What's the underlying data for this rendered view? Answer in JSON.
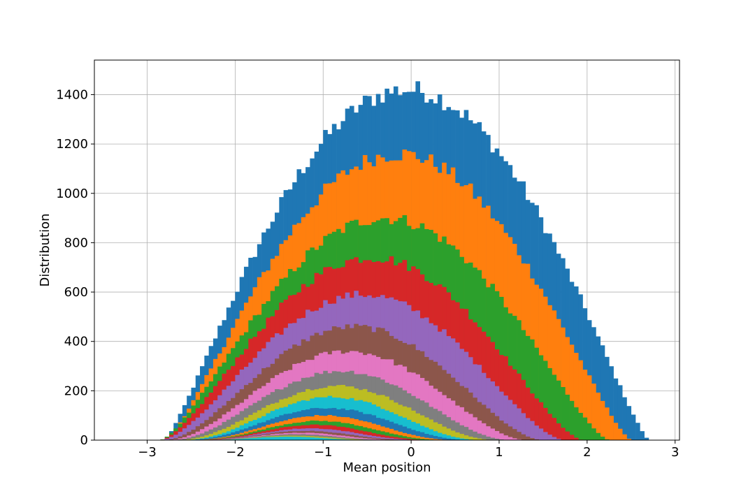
{
  "chart_data": {
    "type": "bar",
    "subtype": "overlaid histogram",
    "xlabel": "Mean position",
    "ylabel": "Distribution",
    "xlim": [
      -3.6,
      3.05
    ],
    "ylim": [
      0,
      1540
    ],
    "xticks": [
      -3,
      -2,
      -1,
      0,
      1,
      2,
      3
    ],
    "xtick_labels": [
      "−3",
      "−2",
      "−1",
      "0",
      "1",
      "2",
      "3"
    ],
    "yticks": [
      0,
      200,
      400,
      600,
      800,
      1000,
      1200,
      1400
    ],
    "ytick_labels": [
      "0",
      "200",
      "400",
      "600",
      "800",
      "1000",
      "1200",
      "1400"
    ],
    "grid": true,
    "bin_width": 0.05,
    "series": [
      {
        "color": "#1f77b4",
        "amplitude": 1420,
        "center": -0.05,
        "halfwidth": 2.75,
        "exponent": 1.25
      },
      {
        "color": "#ff7f0e",
        "amplitude": 1160,
        "center": -0.15,
        "halfwidth": 2.65,
        "exponent": 1.35
      },
      {
        "color": "#2ca02c",
        "amplitude": 900,
        "center": -0.3,
        "halfwidth": 2.55,
        "exponent": 1.45
      },
      {
        "color": "#d62728",
        "amplitude": 740,
        "center": -0.45,
        "halfwidth": 2.4,
        "exponent": 1.55
      },
      {
        "color": "#9467bd",
        "amplitude": 590,
        "center": -0.55,
        "halfwidth": 2.3,
        "exponent": 1.7
      },
      {
        "color": "#8c564b",
        "amplitude": 460,
        "center": -0.65,
        "halfwidth": 2.15,
        "exponent": 1.85
      },
      {
        "color": "#e377c2",
        "amplitude": 360,
        "center": -0.72,
        "halfwidth": 2.05,
        "exponent": 2.0
      },
      {
        "color": "#7f7f7f",
        "amplitude": 280,
        "center": -0.8,
        "halfwidth": 1.95,
        "exponent": 2.2
      },
      {
        "color": "#bcbd22",
        "amplitude": 220,
        "center": -0.85,
        "halfwidth": 1.85,
        "exponent": 2.4
      },
      {
        "color": "#17becf",
        "amplitude": 175,
        "center": -0.9,
        "halfwidth": 1.75,
        "exponent": 2.6
      },
      {
        "color": "#1f77b4",
        "amplitude": 130,
        "center": -0.95,
        "halfwidth": 1.7,
        "exponent": 2.8
      },
      {
        "color": "#ff7f0e",
        "amplitude": 100,
        "center": -1.0,
        "halfwidth": 1.6,
        "exponent": 3.0
      },
      {
        "color": "#2ca02c",
        "amplitude": 78,
        "center": -1.05,
        "halfwidth": 1.55,
        "exponent": 3.2
      },
      {
        "color": "#d62728",
        "amplitude": 62,
        "center": -1.1,
        "halfwidth": 1.5,
        "exponent": 3.4
      },
      {
        "color": "#9467bd",
        "amplitude": 48,
        "center": -1.15,
        "halfwidth": 1.45,
        "exponent": 3.6
      },
      {
        "color": "#8c564b",
        "amplitude": 38,
        "center": -1.2,
        "halfwidth": 1.4,
        "exponent": 3.8
      },
      {
        "color": "#e377c2",
        "amplitude": 30,
        "center": -1.25,
        "halfwidth": 1.35,
        "exponent": 4.0
      },
      {
        "color": "#7f7f7f",
        "amplitude": 24,
        "center": -1.3,
        "halfwidth": 1.3,
        "exponent": 4.2
      },
      {
        "color": "#bcbd22",
        "amplitude": 18,
        "center": -1.35,
        "halfwidth": 1.25,
        "exponent": 4.4
      },
      {
        "color": "#17becf",
        "amplitude": 14,
        "center": -1.4,
        "halfwidth": 1.2,
        "exponent": 4.6
      }
    ]
  }
}
